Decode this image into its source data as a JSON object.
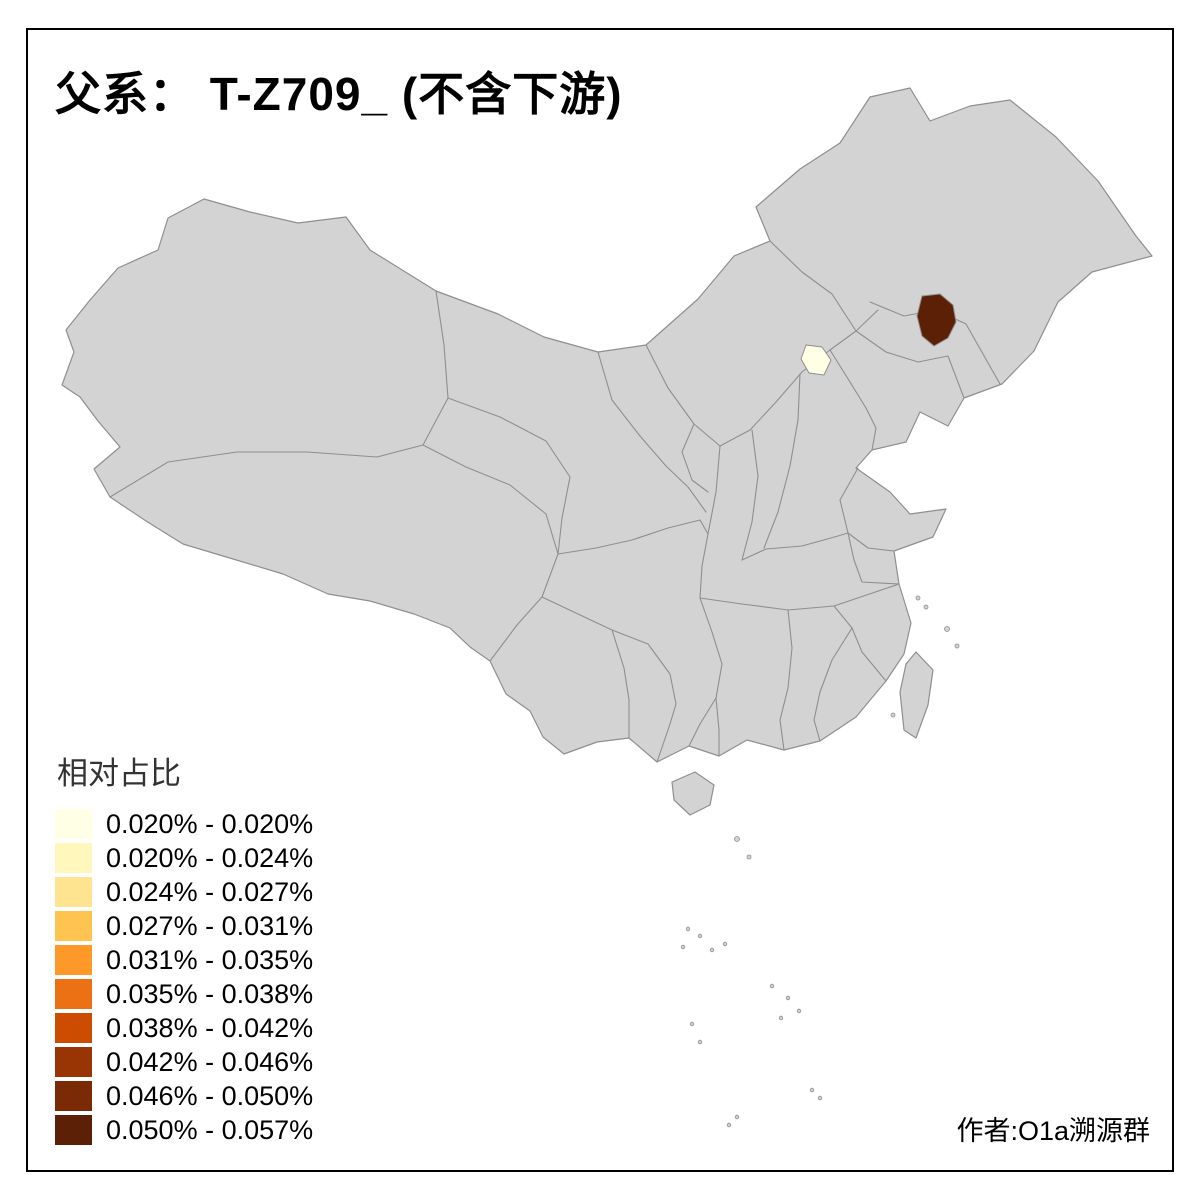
{
  "title": "父系：  T-Z709_ (不含下游)",
  "legend": {
    "title": "相对占比",
    "items": [
      {
        "label": "0.020% - 0.020%",
        "color": "#FFFFE5"
      },
      {
        "label": "0.020% - 0.024%",
        "color": "#FFF7BC"
      },
      {
        "label": "0.024% - 0.027%",
        "color": "#FEE391"
      },
      {
        "label": "0.027% - 0.031%",
        "color": "#FEC44F"
      },
      {
        "label": "0.031% - 0.035%",
        "color": "#FE9929"
      },
      {
        "label": "0.035% - 0.038%",
        "color": "#EC7014"
      },
      {
        "label": "0.038% - 0.042%",
        "color": "#CC4C02"
      },
      {
        "label": "0.042% - 0.046%",
        "color": "#993404"
      },
      {
        "label": "0.046% - 0.050%",
        "color": "#7A2A05"
      },
      {
        "label": "0.050% - 0.057%",
        "color": "#5C2006"
      }
    ]
  },
  "credit": "作者:O1a溯源群",
  "map": {
    "background": "#FFFFFF",
    "base_fill": "#D3D3D3",
    "border_color": "#8F8F8F",
    "frame_color": "#000000",
    "highlights": [
      {
        "value_range": "0.020% - 0.020%",
        "color": "#FFFFE5"
      },
      {
        "value_range": "0.050% - 0.057%",
        "color": "#5C2006"
      }
    ]
  }
}
